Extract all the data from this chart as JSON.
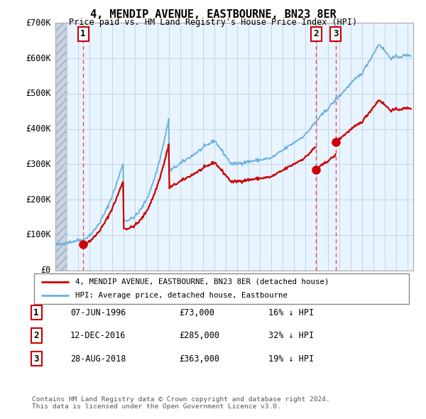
{
  "title": "4, MENDIP AVENUE, EASTBOURNE, BN23 8ER",
  "subtitle": "Price paid vs. HM Land Registry's House Price Index (HPI)",
  "ylim": [
    0,
    700000
  ],
  "yticks": [
    0,
    100000,
    200000,
    300000,
    400000,
    500000,
    600000,
    700000
  ],
  "ytick_labels": [
    "£0",
    "£100K",
    "£200K",
    "£300K",
    "£400K",
    "£500K",
    "£600K",
    "£700K"
  ],
  "xlim_start": 1994.0,
  "xlim_end": 2025.5,
  "hpi_color": "#6ab0de",
  "price_color": "#cc0000",
  "dashed_color": "#ff4444",
  "bg_color": "#e8f4ff",
  "grid_color": "#c0d0e0",
  "sale_dates": [
    1996.44,
    2016.95,
    2018.66
  ],
  "sale_prices": [
    73000,
    285000,
    363000
  ],
  "sale_labels": [
    "1",
    "2",
    "3"
  ],
  "legend_line1": "4, MENDIP AVENUE, EASTBOURNE, BN23 8ER (detached house)",
  "legend_line2": "HPI: Average price, detached house, Eastbourne",
  "table_rows": [
    [
      "1",
      "07-JUN-1996",
      "£73,000",
      "16% ↓ HPI"
    ],
    [
      "2",
      "12-DEC-2016",
      "£285,000",
      "32% ↓ HPI"
    ],
    [
      "3",
      "28-AUG-2018",
      "£363,000",
      "19% ↓ HPI"
    ]
  ],
  "footnote": "Contains HM Land Registry data © Crown copyright and database right 2024.\nThis data is licensed under the Open Government Licence v3.0.",
  "hatch_end": 1995.0
}
